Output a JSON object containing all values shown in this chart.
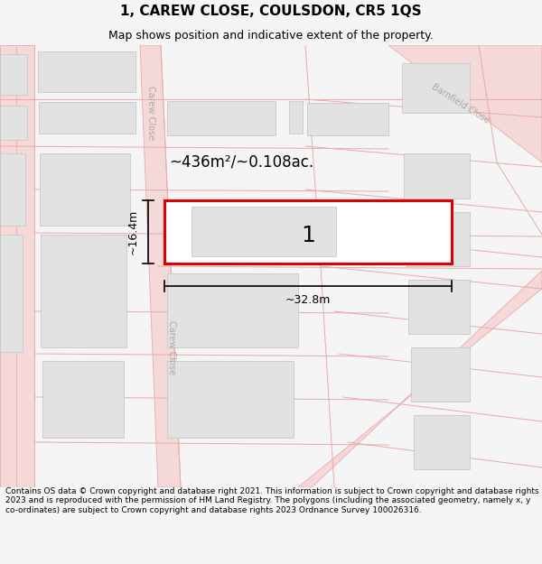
{
  "title": "1, CAREW CLOSE, COULSDON, CR5 1QS",
  "subtitle": "Map shows position and indicative extent of the property.",
  "footer": "Contains OS data © Crown copyright and database right 2021. This information is subject to Crown copyright and database rights 2023 and is reproduced with the permission of HM Land Registry. The polygons (including the associated geometry, namely x, y co-ordinates) are subject to Crown copyright and database rights 2023 Ordnance Survey 100026316.",
  "area_label": "~436m²/~0.108ac.",
  "width_label": "~32.8m",
  "height_label": "~16.4m",
  "plot_number": "1",
  "bg_color": "#f5f5f5",
  "map_bg": "#ffffff",
  "road_color": "#f5d8d8",
  "road_line_color": "#e8aaaa",
  "building_fill": "#e2e2e2",
  "building_edge": "#c8c8c8",
  "highlight_fill": "#ffffff",
  "highlight_edge": "#dd0000",
  "highlight_lw": 2.2,
  "dim_line_color": "#000000",
  "street_label_color": "#b8b8b8",
  "carew_label_color": "#aaaaaa",
  "title_fontsize": 11,
  "subtitle_fontsize": 9,
  "footer_fontsize": 6.5
}
